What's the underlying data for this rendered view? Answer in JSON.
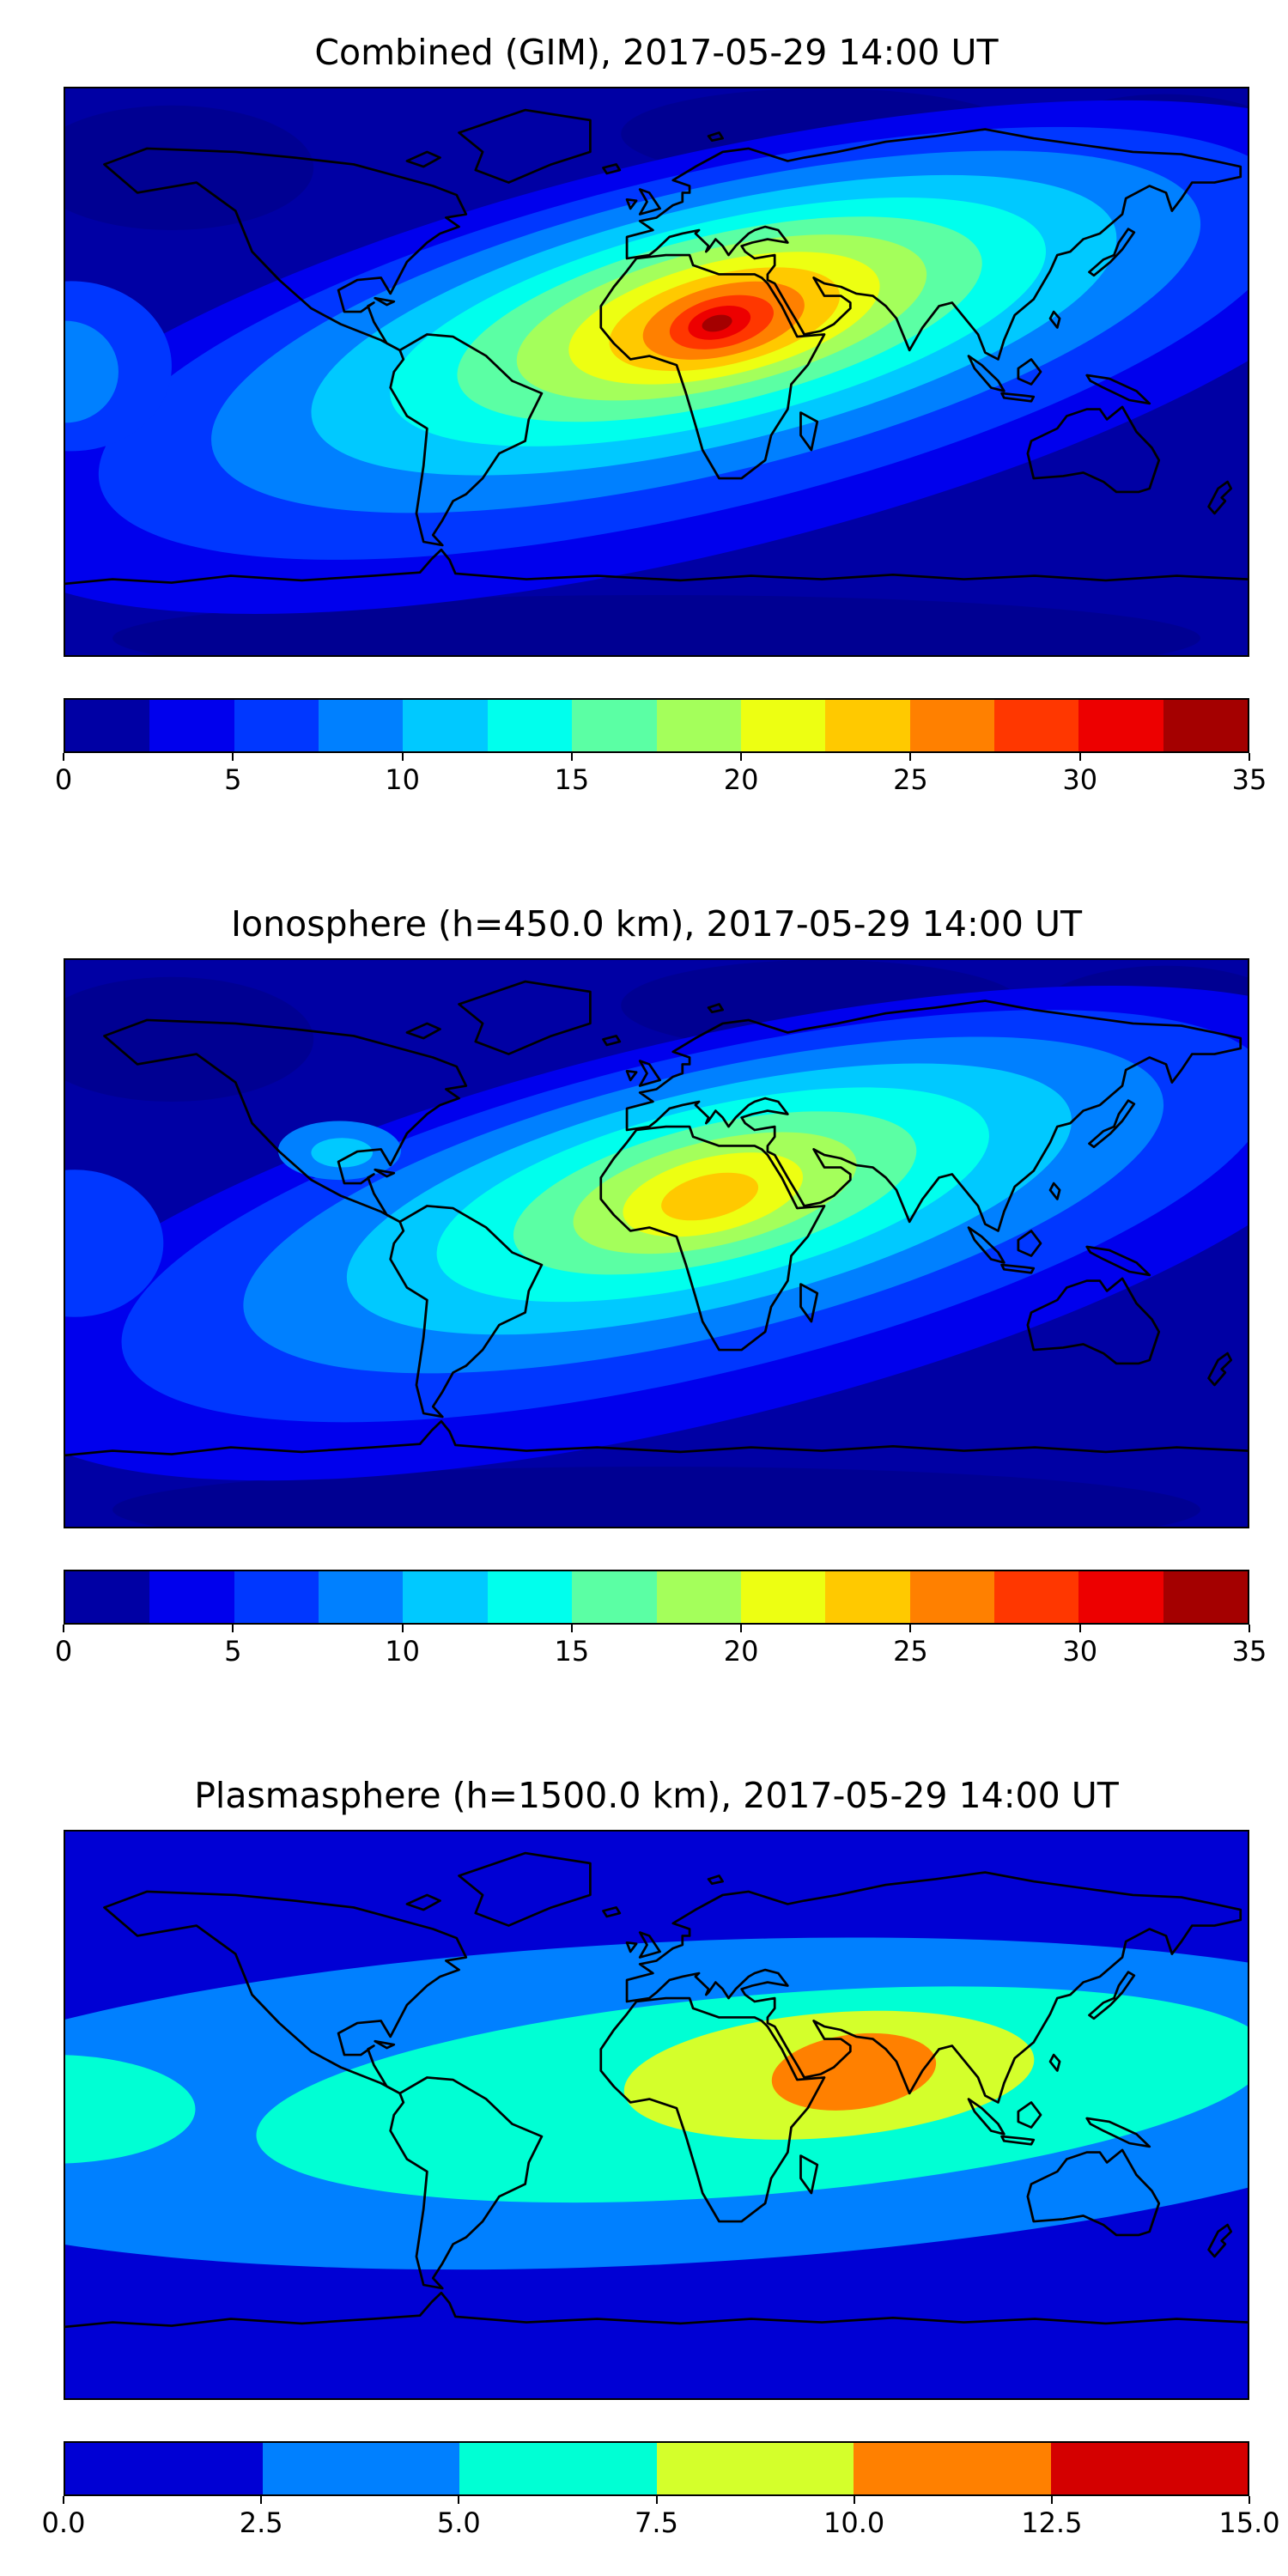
{
  "figure": {
    "background_color": "#ffffff",
    "n_panels": 3
  },
  "chart_data": [
    {
      "type": "heatmap",
      "subtype": "filled-contour-world-map",
      "title": "Combined (GIM), 2017-05-29 14:00 UT",
      "projection": "equirectangular",
      "lon_range": [
        -180,
        180
      ],
      "lat_range": [
        -90,
        90
      ],
      "colormap": "jet",
      "grid": false,
      "coastlines": true,
      "colorbar": {
        "orientation": "horizontal",
        "min": 0,
        "max": 35,
        "n_segments": 14,
        "ticks": [
          "0",
          "5",
          "10",
          "15",
          "20",
          "25",
          "30",
          "35"
        ],
        "segment_colors": [
          "#0000A4",
          "#0000ED",
          "#0037FF",
          "#0080FF",
          "#00C9FF",
          "#00FFED",
          "#5BFFA4",
          "#A4FF5B",
          "#EDFF12",
          "#FFC900",
          "#FF8000",
          "#FF3700",
          "#ED0000",
          "#A40000"
        ]
      },
      "field_summary": {
        "peak_approx_value": 34,
        "peak_approx_lon": 20,
        "peak_approx_lat": 16,
        "background_approx_value": 2,
        "high_region_extent_lon": [
          -60,
          80
        ],
        "high_region_extent_lat": [
          -10,
          40
        ]
      }
    },
    {
      "type": "heatmap",
      "subtype": "filled-contour-world-map",
      "title": "Ionosphere  (h=450.0 km), 2017-05-29 14:00 UT",
      "projection": "equirectangular",
      "lon_range": [
        -180,
        180
      ],
      "lat_range": [
        -90,
        90
      ],
      "colormap": "jet",
      "grid": false,
      "coastlines": true,
      "colorbar": {
        "orientation": "horizontal",
        "min": 0,
        "max": 35,
        "n_segments": 14,
        "ticks": [
          "0",
          "5",
          "10",
          "15",
          "20",
          "25",
          "30",
          "35"
        ],
        "segment_colors": [
          "#0000A4",
          "#0000ED",
          "#0037FF",
          "#0080FF",
          "#00C9FF",
          "#00FFED",
          "#5BFFA4",
          "#A4FF5B",
          "#EDFF12",
          "#FFC900",
          "#FF8000",
          "#FF3700",
          "#ED0000",
          "#A40000"
        ]
      },
      "field_summary": {
        "peak_approx_value": 23,
        "peak_approx_lon": 15,
        "peak_approx_lat": 15,
        "background_approx_value": 2,
        "high_region_extent_lon": [
          -50,
          70
        ],
        "high_region_extent_lat": [
          -10,
          40
        ]
      }
    },
    {
      "type": "heatmap",
      "subtype": "filled-contour-world-map",
      "title": "Plasmasphere (h=1500.0 km), 2017-05-29 14:00 UT",
      "projection": "equirectangular",
      "lon_range": [
        -180,
        180
      ],
      "lat_range": [
        -90,
        90
      ],
      "colormap": "jet",
      "grid": false,
      "coastlines": true,
      "colorbar": {
        "orientation": "horizontal",
        "min": 0,
        "max": 15,
        "n_segments": 6,
        "ticks": [
          "0.0",
          "2.5",
          "5.0",
          "7.5",
          "10.0",
          "12.5",
          "15.0"
        ],
        "segment_colors": [
          "#0000D4",
          "#0080FF",
          "#00FFD4",
          "#D4FF2B",
          "#FF8000",
          "#D40000"
        ]
      },
      "field_summary": {
        "peak_approx_value": 11,
        "peak_approx_lon": 60,
        "peak_approx_lat": 17,
        "background_approx_value": 1,
        "high_region_extent_lon": [
          -10,
          115
        ],
        "high_region_extent_lat": [
          -5,
          35
        ]
      }
    }
  ]
}
